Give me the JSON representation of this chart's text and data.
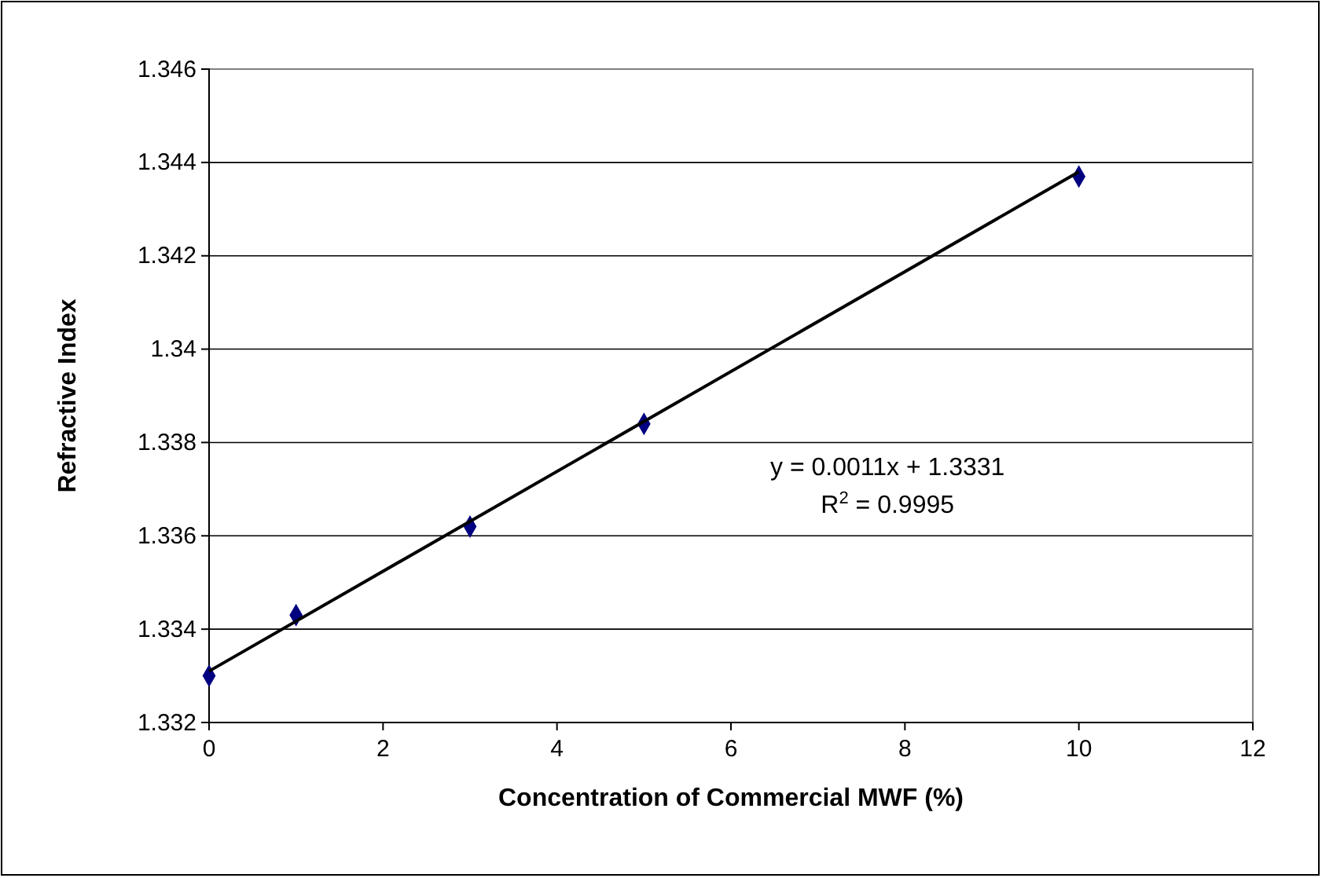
{
  "chart_data": {
    "type": "scatter",
    "xlabel": "Concentration of Commercial MWF (%)",
    "ylabel": "Refractive Index",
    "xlim": [
      0,
      12
    ],
    "xticks": [
      0,
      2,
      4,
      6,
      8,
      10,
      12
    ],
    "ylim": [
      1.332,
      1.346
    ],
    "yticks": [
      1.332,
      1.334,
      1.336,
      1.338,
      1.34,
      1.342,
      1.344,
      1.346
    ],
    "grid": "y",
    "series": [
      {
        "color": "#000080",
        "marker": "diamond",
        "x": [
          0,
          1,
          3,
          5,
          10
        ],
        "values": [
          1.333,
          1.3343,
          1.3362,
          1.3384,
          1.3437
        ]
      },
      {
        "type": "line",
        "color": "#000000",
        "marker": "none",
        "line_style": "solid",
        "x": [
          0,
          10
        ],
        "values": [
          1.3331,
          1.3438
        ]
      }
    ],
    "annotations": [
      "y = 0.0011x + 1.3331",
      "R$^{2}$ = 0.9995"
    ]
  }
}
